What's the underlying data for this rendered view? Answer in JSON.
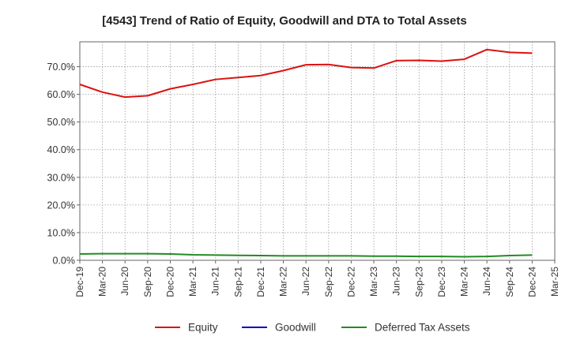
{
  "chart_data": {
    "type": "line",
    "title": "[4543]  Trend of Ratio of Equity, Goodwill and DTA to Total Assets",
    "xlabel": "",
    "ylabel": "",
    "ylim": [
      0,
      0.79
    ],
    "yticks": [
      {
        "value": 0.0,
        "label": "0.0%"
      },
      {
        "value": 0.1,
        "label": "10.0%"
      },
      {
        "value": 0.2,
        "label": "20.0%"
      },
      {
        "value": 0.3,
        "label": "30.0%"
      },
      {
        "value": 0.4,
        "label": "40.0%"
      },
      {
        "value": 0.5,
        "label": "50.0%"
      },
      {
        "value": 0.6,
        "label": "60.0%"
      },
      {
        "value": 0.7,
        "label": "70.0%"
      }
    ],
    "x_labels": [
      "Dec-19",
      "Mar-20",
      "Jun-20",
      "Sep-20",
      "Dec-20",
      "Mar-21",
      "Jun-21",
      "Sep-21",
      "Dec-21",
      "Mar-22",
      "Jun-22",
      "Sep-22",
      "Dec-22",
      "Mar-23",
      "Jun-23",
      "Sep-23",
      "Dec-23",
      "Mar-24",
      "Jun-24",
      "Sep-24",
      "Dec-24",
      "Mar-25"
    ],
    "grid": true,
    "legend_position": "bottom",
    "series": [
      {
        "name": "Equity",
        "color": "#dd1111",
        "values": [
          0.636,
          0.608,
          0.59,
          0.595,
          0.62,
          0.636,
          0.654,
          0.661,
          0.668,
          0.686,
          0.707,
          0.708,
          0.697,
          0.695,
          0.722,
          0.723,
          0.72,
          0.727,
          0.762,
          0.752,
          0.749
        ]
      },
      {
        "name": "Goodwill",
        "color": "#0000cc",
        "values": []
      },
      {
        "name": "Deferred Tax Assets",
        "color": "#228b22",
        "values": [
          0.023,
          0.024,
          0.024,
          0.024,
          0.023,
          0.02,
          0.019,
          0.018,
          0.017,
          0.016,
          0.016,
          0.016,
          0.016,
          0.015,
          0.015,
          0.014,
          0.014,
          0.013,
          0.014,
          0.017,
          0.019
        ]
      }
    ]
  }
}
